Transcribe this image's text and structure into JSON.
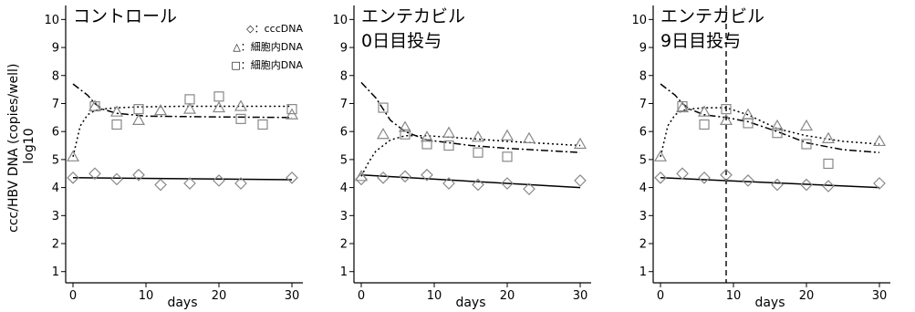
{
  "figure": {
    "ylabel_line1": "ccc/HBV DNA (copies/well)",
    "ylabel_line2": "log10"
  },
  "colors": {
    "axis": "#000000",
    "marker_gray": "#888888",
    "line_black": "#000000"
  },
  "chart_data": [
    {
      "type": "line",
      "title_lines": [
        "コントロール"
      ],
      "xlabel": "days",
      "ylabel": "ccc/HBV DNA (copies/well) log10",
      "xlim": [
        -1,
        31.5
      ],
      "ylim": [
        0.6,
        10.5
      ],
      "xticks": [
        0,
        10,
        20,
        30
      ],
      "yticks": [
        1,
        2,
        3,
        4,
        5,
        6,
        7,
        8,
        9,
        10
      ],
      "legend": [
        {
          "marker": "diamond",
          "label": "◇：cccDNA"
        },
        {
          "marker": "triangle",
          "label": "△：細胞内DNA"
        },
        {
          "marker": "square",
          "label": "□：細胞内DNA"
        }
      ],
      "series": [
        {
          "name": "cccDNA",
          "marker": "diamond",
          "line": "solid",
          "x": [
            0,
            3,
            6,
            9,
            12,
            16,
            20,
            23,
            30
          ],
          "y": [
            4.35,
            4.5,
            4.3,
            4.45,
            4.1,
            4.15,
            4.25,
            4.15,
            4.35
          ],
          "fit_x": [
            0,
            30
          ],
          "fit_y": [
            4.35,
            4.28
          ]
        },
        {
          "name": "細胞内DNA",
          "marker": "triangle",
          "line": "dotted",
          "x": [
            0,
            3,
            6,
            9,
            12,
            16,
            20,
            23,
            30
          ],
          "y": [
            5.1,
            6.9,
            6.7,
            6.4,
            6.75,
            6.8,
            6.85,
            6.9,
            6.6
          ],
          "fit_x": [
            0,
            1,
            2,
            3,
            4,
            6,
            9,
            15,
            30
          ],
          "fit_y": [
            5.1,
            6.2,
            6.6,
            6.75,
            6.8,
            6.85,
            6.88,
            6.9,
            6.9
          ]
        },
        {
          "name": "細胞内DNA",
          "marker": "square",
          "line": "dashdot",
          "x": [
            3,
            6,
            9,
            16,
            20,
            23,
            26,
            30
          ],
          "y": [
            6.9,
            6.25,
            6.8,
            7.15,
            7.25,
            6.45,
            6.25,
            6.8
          ],
          "fit_x": [
            0,
            2,
            3,
            4,
            6,
            10,
            20,
            30
          ],
          "fit_y": [
            7.7,
            7.3,
            7.0,
            6.8,
            6.65,
            6.55,
            6.52,
            6.5
          ]
        }
      ]
    },
    {
      "type": "line",
      "title_lines": [
        "エンテカビル",
        "0日目投与"
      ],
      "xlabel": "days",
      "xlim": [
        -1,
        31.5
      ],
      "ylim": [
        0.6,
        10.5
      ],
      "xticks": [
        0,
        10,
        20,
        30
      ],
      "yticks": [
        1,
        2,
        3,
        4,
        5,
        6,
        7,
        8,
        9,
        10
      ],
      "series": [
        {
          "name": "cccDNA",
          "marker": "diamond",
          "line": "solid",
          "x": [
            0,
            3,
            6,
            9,
            12,
            16,
            20,
            23,
            30
          ],
          "y": [
            4.3,
            4.35,
            4.4,
            4.45,
            4.15,
            4.1,
            4.15,
            3.95,
            4.25
          ],
          "fit_x": [
            0,
            30
          ],
          "fit_y": [
            4.45,
            4.0
          ]
        },
        {
          "name": "細胞内DNA",
          "marker": "triangle",
          "line": "dotted",
          "x": [
            0,
            3,
            6,
            9,
            12,
            16,
            20,
            23,
            30
          ],
          "y": [
            4.4,
            5.9,
            6.15,
            5.8,
            5.95,
            5.8,
            5.85,
            5.75,
            5.55
          ],
          "fit_x": [
            0,
            1,
            2,
            4,
            6,
            9,
            15,
            20,
            30
          ],
          "fit_y": [
            4.4,
            4.9,
            5.3,
            5.7,
            5.85,
            5.85,
            5.75,
            5.65,
            5.5
          ]
        },
        {
          "name": "細胞内DNA",
          "marker": "square",
          "line": "dashdot",
          "x": [
            3,
            6,
            9,
            12,
            16,
            20
          ],
          "y": [
            6.85,
            5.9,
            5.55,
            5.5,
            5.25,
            5.1
          ],
          "fit_x": [
            0,
            2,
            3,
            4,
            6,
            9,
            15,
            20,
            30
          ],
          "fit_y": [
            7.75,
            7.2,
            6.8,
            6.4,
            6.0,
            5.7,
            5.5,
            5.4,
            5.25
          ]
        }
      ]
    },
    {
      "type": "line",
      "title_lines": [
        "エンテカビル",
        "9日目投与"
      ],
      "xlabel": "days",
      "xlim": [
        -1,
        31.5
      ],
      "ylim": [
        0.6,
        10.5
      ],
      "xticks": [
        0,
        10,
        20,
        30
      ],
      "yticks": [
        1,
        2,
        3,
        4,
        5,
        6,
        7,
        8,
        9,
        10
      ],
      "vline_x": 9,
      "series": [
        {
          "name": "cccDNA",
          "marker": "diamond",
          "line": "solid",
          "x": [
            0,
            3,
            6,
            9,
            12,
            16,
            20,
            23,
            30
          ],
          "y": [
            4.35,
            4.5,
            4.35,
            4.45,
            4.25,
            4.1,
            4.1,
            4.05,
            4.15
          ],
          "fit_x": [
            0,
            30
          ],
          "fit_y": [
            4.35,
            4.0
          ]
        },
        {
          "name": "細胞内DNA",
          "marker": "triangle",
          "line": "dotted",
          "x": [
            0,
            3,
            6,
            9,
            12,
            16,
            20,
            23,
            30
          ],
          "y": [
            5.1,
            6.85,
            6.7,
            6.4,
            6.6,
            6.2,
            6.2,
            5.75,
            5.65
          ],
          "fit_x": [
            0,
            1,
            2,
            3,
            4,
            6,
            9,
            12,
            16,
            20,
            25,
            30
          ],
          "fit_y": [
            5.1,
            6.2,
            6.6,
            6.75,
            6.8,
            6.85,
            6.85,
            6.6,
            6.1,
            5.85,
            5.65,
            5.55
          ]
        },
        {
          "name": "細胞内DNA",
          "marker": "square",
          "line": "dashdot",
          "x": [
            3,
            6,
            9,
            12,
            16,
            20,
            23
          ],
          "y": [
            6.9,
            6.25,
            6.8,
            6.3,
            5.95,
            5.55,
            4.85
          ],
          "fit_x": [
            0,
            2,
            3,
            4,
            6,
            9,
            12,
            16,
            20,
            25,
            30
          ],
          "fit_y": [
            7.7,
            7.3,
            7.0,
            6.8,
            6.6,
            6.5,
            6.35,
            6.0,
            5.6,
            5.35,
            5.25
          ]
        }
      ]
    }
  ]
}
